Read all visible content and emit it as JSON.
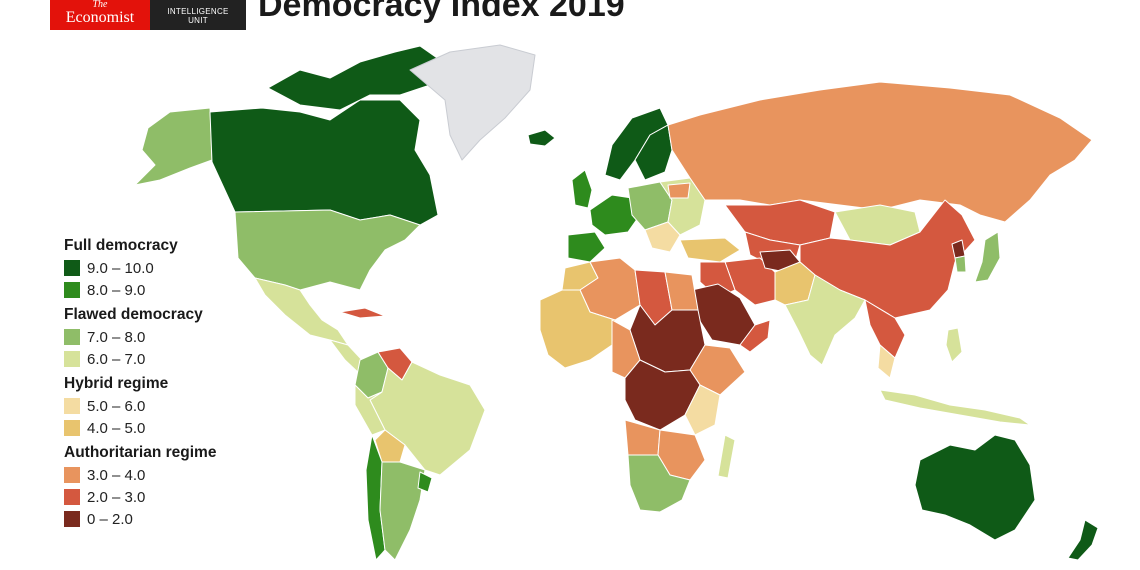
{
  "header": {
    "logo_the": "The",
    "logo_name": "Economist",
    "logo_unit_line1": "INTELLIGENCE",
    "logo_unit_line2": "UNIT",
    "title": "Democracy Index 2019"
  },
  "colors": {
    "economist_red": "#e3120b",
    "no_data": "#e2e3e6",
    "ocean": "#ffffff",
    "d9_10": "#0f5a17",
    "d8_9": "#2e8b1d",
    "d7_8": "#8fbd68",
    "d6_7": "#d6e29a",
    "d5_6": "#f4dca2",
    "d4_5": "#e8c46e",
    "d3_4": "#e8945e",
    "d2_3": "#d4583f",
    "d0_2": "#7a2a1e"
  },
  "legend": {
    "categories": [
      {
        "title": "Full democracy",
        "bins": [
          {
            "label": "9.0 – 10.0",
            "color": "#0f5a17"
          },
          {
            "label": "8.0 – 9.0",
            "color": "#2e8b1d"
          }
        ]
      },
      {
        "title": "Flawed democracy",
        "bins": [
          {
            "label": "7.0 – 8.0",
            "color": "#8fbd68"
          },
          {
            "label": "6.0 – 7.0",
            "color": "#d6e29a"
          }
        ]
      },
      {
        "title": "Hybrid regime",
        "bins": [
          {
            "label": "5.0 – 6.0",
            "color": "#f4dca2"
          },
          {
            "label": "4.0 – 5.0",
            "color": "#e8c46e"
          }
        ]
      },
      {
        "title": "Authoritarian regime",
        "bins": [
          {
            "label": "3.0 – 4.0",
            "color": "#e8945e"
          },
          {
            "label": "2.0 – 3.0",
            "color": "#d4583f"
          },
          {
            "label": "0 – 2.0",
            "color": "#7a2a1e"
          }
        ]
      }
    ]
  }
}
